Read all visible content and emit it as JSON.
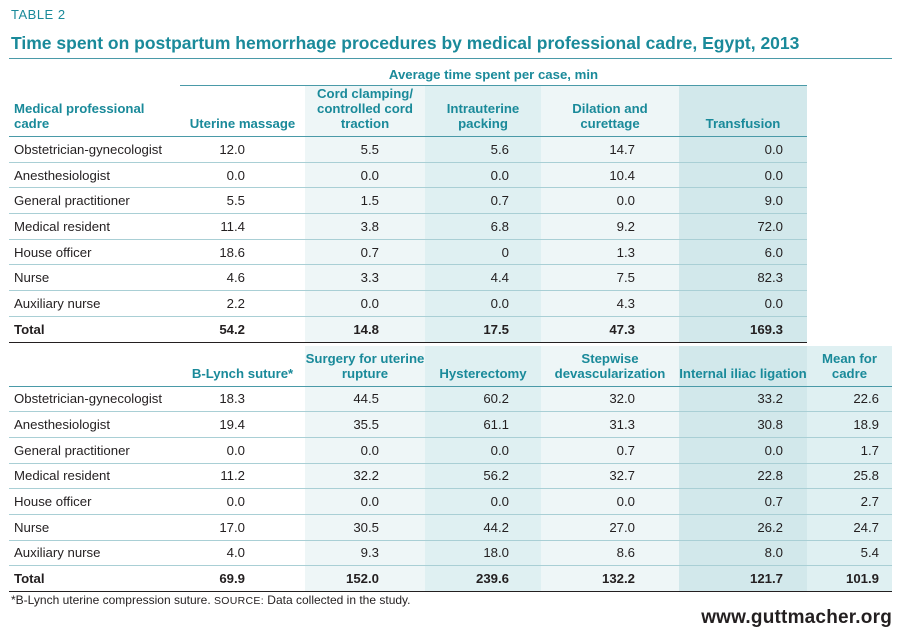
{
  "table_label": "TABLE 2",
  "title": "Time spent on postpartum hemorrhage procedures by medical professional cadre, Egypt, 2013",
  "table1": {
    "span_header": "Average time spent per case, min",
    "col0_header": "Medical professional cadre",
    "columns": [
      "Uterine massage",
      "Cord clamping/ controlled cord traction",
      "Intrauterine packing",
      "Dilation and curettage",
      "Transfusion"
    ],
    "rows": [
      {
        "name": "Obstetrician-gynecologist",
        "values": [
          "12.0",
          "5.5",
          "5.6",
          "14.7",
          "0.0"
        ]
      },
      {
        "name": "Anesthesiologist",
        "values": [
          "0.0",
          "0.0",
          "0.0",
          "10.4",
          "0.0"
        ]
      },
      {
        "name": "General practitioner",
        "values": [
          "5.5",
          "1.5",
          "0.7",
          "0.0",
          "9.0"
        ]
      },
      {
        "name": "Medical resident",
        "values": [
          "11.4",
          "3.8",
          "6.8",
          "9.2",
          "72.0"
        ]
      },
      {
        "name": "House officer",
        "values": [
          "18.6",
          "0.7",
          "0",
          "1.3",
          "6.0"
        ]
      },
      {
        "name": "Nurse",
        "values": [
          "4.6",
          "3.3",
          "4.4",
          "7.5",
          "82.3"
        ]
      },
      {
        "name": "Auxiliary nurse",
        "values": [
          "2.2",
          "0.0",
          "0.0",
          "4.3",
          "0.0"
        ]
      }
    ],
    "total": {
      "name": "Total",
      "values": [
        "54.2",
        "14.8",
        "17.5",
        "47.3",
        "169.3"
      ]
    }
  },
  "table2": {
    "columns": [
      "B-Lynch suture*",
      "Surgery for uterine rupture",
      "Hysterectomy",
      "Stepwise devascularization",
      "Internal iliac ligation",
      "Mean for cadre"
    ],
    "rows": [
      {
        "name": "Obstetrician-gynecologist",
        "values": [
          "18.3",
          "44.5",
          "60.2",
          "32.0",
          "33.2",
          "22.6"
        ]
      },
      {
        "name": "Anesthesiologist",
        "values": [
          "19.4",
          "35.5",
          "61.1",
          "31.3",
          "30.8",
          "18.9"
        ]
      },
      {
        "name": "General practitioner",
        "values": [
          "0.0",
          "0.0",
          "0.0",
          "0.7",
          "0.0",
          "1.7"
        ]
      },
      {
        "name": "Medical resident",
        "values": [
          "11.2",
          "32.2",
          "56.2",
          "32.7",
          "22.8",
          "25.8"
        ]
      },
      {
        "name": "House officer",
        "values": [
          "0.0",
          "0.0",
          "0.0",
          "0.0",
          "0.7",
          "2.7"
        ]
      },
      {
        "name": "Nurse",
        "values": [
          "17.0",
          "30.5",
          "44.2",
          "27.0",
          "26.2",
          "24.7"
        ]
      },
      {
        "name": "Auxiliary nurse",
        "values": [
          "4.0",
          "9.3",
          "18.0",
          "8.6",
          "8.0",
          "5.4"
        ]
      }
    ],
    "total": {
      "name": "Total",
      "values": [
        "69.9",
        "152.0",
        "239.6",
        "132.2",
        "121.7",
        "101.9"
      ]
    }
  },
  "footnote": "*B-Lynch uterine compression suture.",
  "source_label": "SOURCE:",
  "source_text": "Data collected in the study.",
  "website": "www.guttmacher.org",
  "colors": {
    "accent": "#1a8a9a",
    "shade_light": "#eef6f7",
    "shade_mid": "#dff0f2",
    "shade_dark": "#d2e8eb"
  }
}
